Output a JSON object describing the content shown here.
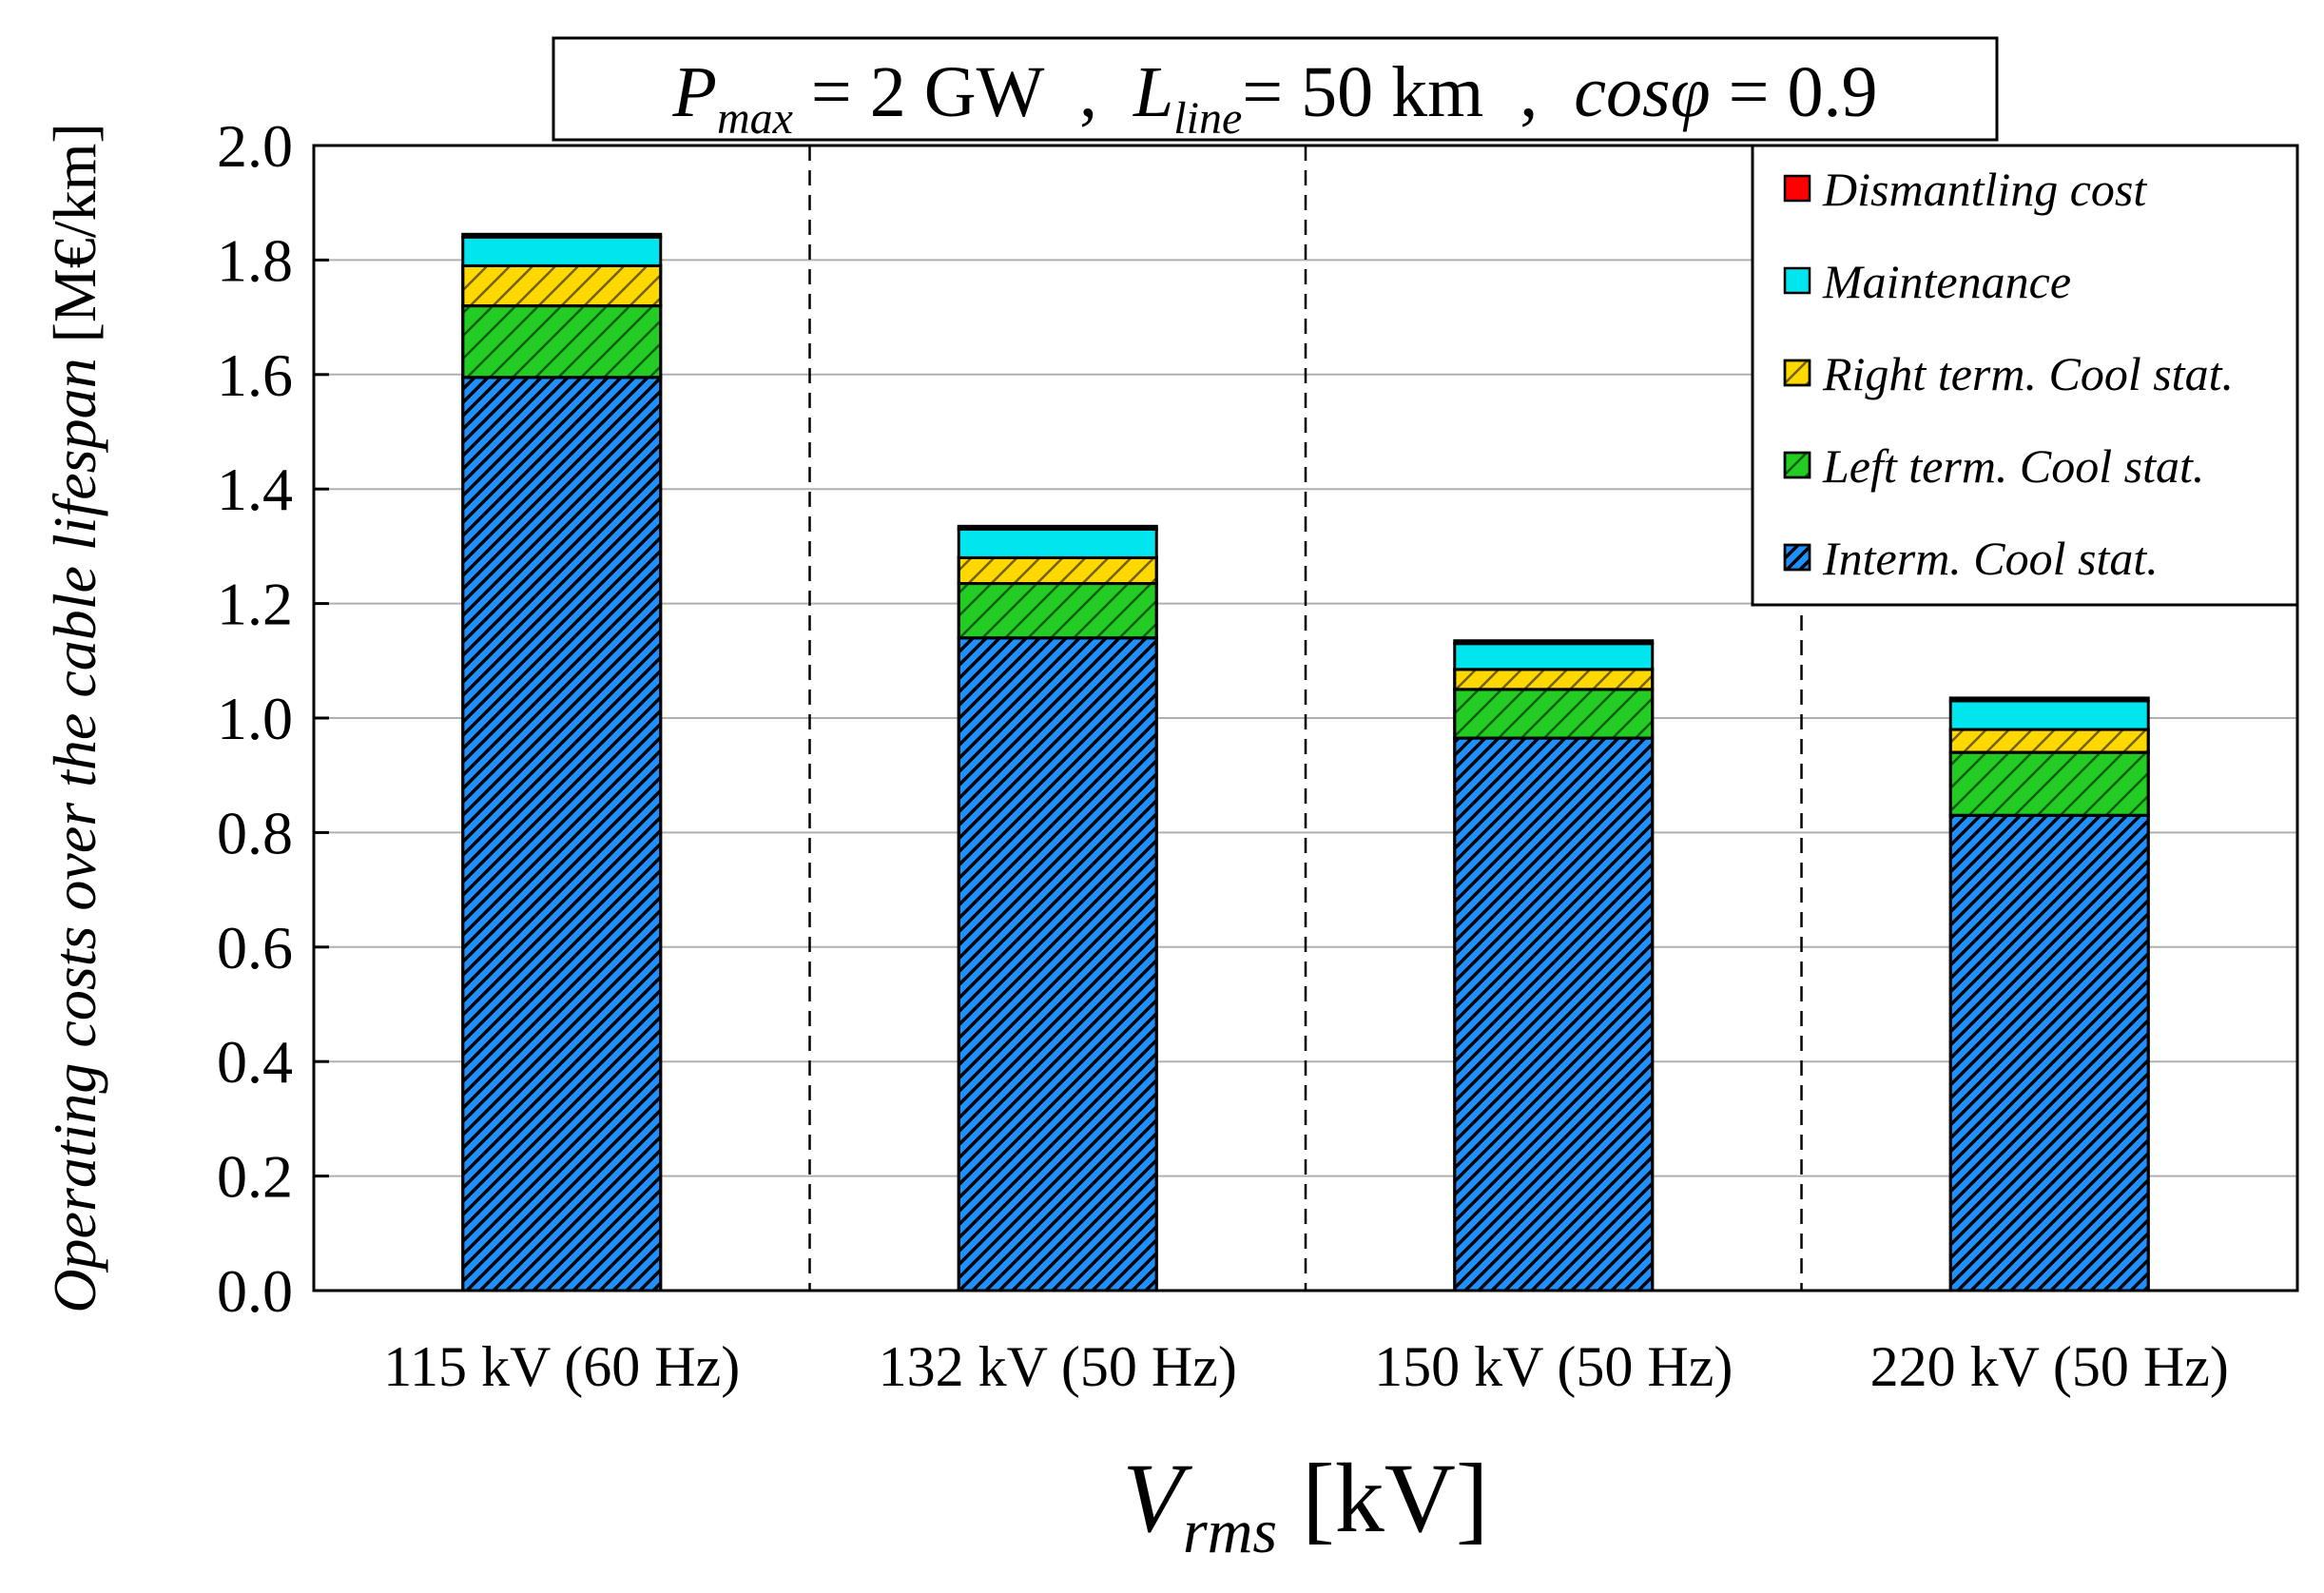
{
  "chart_data": {
    "type": "bar",
    "stacked": true,
    "title": {
      "p_symbol": "P",
      "p_sub": "max",
      "p_value": " = 2 GW",
      "sep1": "  ,  ",
      "l_symbol": "L",
      "l_sub": "line",
      "l_value": "= 50 km",
      "sep2": "  ,  ",
      "cos_symbol": "cosφ",
      "cos_value": " = 0.9"
    },
    "xlabel": {
      "symbol": "V",
      "sub": "rms",
      "unit": " [kV]"
    },
    "ylabel": {
      "italic": "Operating costs over the cable lifespan",
      "unit": " [M€/km]"
    },
    "ylim": [
      0,
      2.0
    ],
    "yticks": [
      "0.0",
      "0.2",
      "0.4",
      "0.6",
      "0.8",
      "1.0",
      "1.2",
      "1.4",
      "1.6",
      "1.8",
      "2.0"
    ],
    "grid": true,
    "legend_position": "top-right",
    "categories": [
      "115 kV (60 Hz)",
      "132 kV (50 Hz)",
      "150 kV (50 Hz)",
      "220 kV (50 Hz)"
    ],
    "series": [
      {
        "name": "Interm. Cool stat.",
        "color": "#1e90ff",
        "hatch": "dense",
        "values": [
          1.595,
          1.14,
          0.965,
          0.83
        ]
      },
      {
        "name": "Left term. Cool stat.",
        "color": "#22cc22",
        "hatch": "sparse",
        "values": [
          0.125,
          0.095,
          0.085,
          0.11
        ]
      },
      {
        "name": "Right term. Cool stat.",
        "color": "#ffd800",
        "hatch": "sparse",
        "values": [
          0.07,
          0.045,
          0.035,
          0.04
        ]
      },
      {
        "name": "Maintenance",
        "color": "#00e5ee",
        "hatch": "none",
        "values": [
          0.05,
          0.05,
          0.045,
          0.05
        ]
      },
      {
        "name": "Dismantling cost",
        "color": "#ff0000",
        "hatch": "none",
        "values": [
          0.005,
          0.005,
          0.005,
          0.005
        ]
      }
    ],
    "legend_order": [
      "Dismantling cost",
      "Maintenance",
      "Right term. Cool stat.",
      "Left term. Cool stat.",
      "Interm. Cool stat."
    ]
  }
}
